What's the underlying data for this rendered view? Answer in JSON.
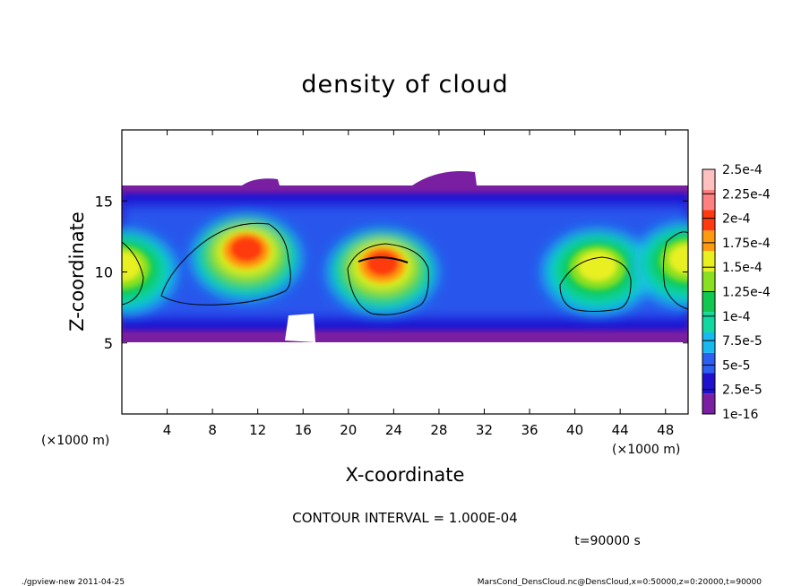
{
  "chart_data": {
    "type": "heatmap",
    "title": "density of cloud",
    "xlabel": "X-coordinate",
    "ylabel": "Z-coordinate",
    "x_unit": "(×1000 m)",
    "x_unit_right": "(×1000 m)",
    "xlim": [
      0,
      50
    ],
    "ylim": [
      0,
      20
    ],
    "x_ticks": [
      4,
      8,
      12,
      16,
      20,
      24,
      28,
      32,
      36,
      40,
      44,
      48
    ],
    "y_ticks": [
      5,
      10,
      15
    ],
    "colorbar": {
      "labels": [
        "1e-16",
        "2.5e-5",
        "5e-5",
        "7.5e-5",
        "1e-4",
        "1.25e-4",
        "1.5e-4",
        "1.75e-4",
        "2e-4",
        "2.25e-4",
        "2.5e-4"
      ],
      "colors": [
        "#7a1fa2",
        "#1f10d0",
        "#2c5ef0",
        "#18b8f0",
        "#10d8a0",
        "#10c850",
        "#88e020",
        "#e8f020",
        "#ff9a10",
        "#ff3a10",
        "#ff8080",
        "#ffc0c0"
      ]
    },
    "cloud_layer": {
      "z_bottom": 5.5,
      "z_top": 16.2
    },
    "cores": [
      {
        "x": 11,
        "z": 11,
        "peak": 0.00019
      },
      {
        "x": 23,
        "z": 10,
        "peak": 0.00021
      },
      {
        "x": 42,
        "z": 10,
        "peak": 0.000155
      },
      {
        "x": 50,
        "z": 10.5,
        "peak": 0.00015
      },
      {
        "x": 0,
        "z": 10,
        "peak": 0.000145
      }
    ],
    "contour_interval": "CONTOUR INTERVAL = 1.000E-04",
    "time_label": "t=90000 s"
  },
  "footer": {
    "left": "./gpview-new   2011-04-25",
    "right": "MarsCond_DensCloud.nc@DensCloud,x=0:50000,z=0:20000,t=90000"
  }
}
